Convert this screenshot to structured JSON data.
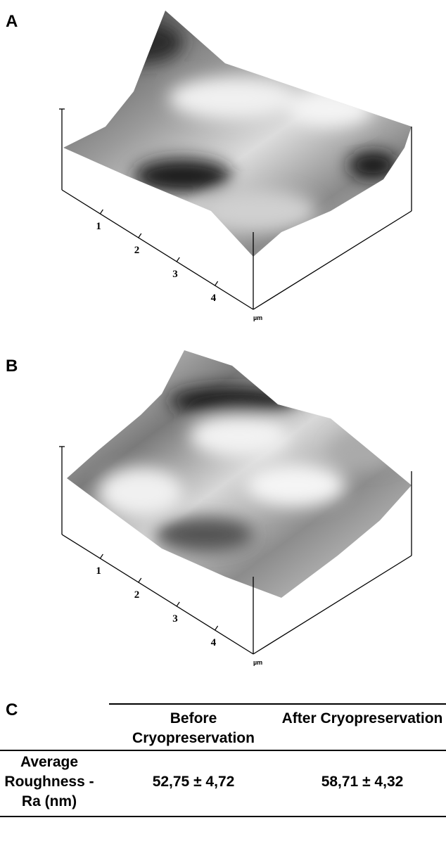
{
  "panels": [
    {
      "label": "A",
      "axis_ticks": [
        "1",
        "2",
        "3",
        "4"
      ],
      "unit": "µm"
    },
    {
      "label": "B",
      "axis_ticks": [
        "1",
        "2",
        "3",
        "4"
      ],
      "unit": "µm"
    }
  ],
  "table": {
    "label": "C",
    "header": [
      "Before Cryopreservation",
      "After Cryopreservation"
    ],
    "rows": [
      [
        "Average Roughness - Ra (nm)",
        "52,75 ± 4,72",
        "58,71 ± 4,32"
      ]
    ]
  }
}
